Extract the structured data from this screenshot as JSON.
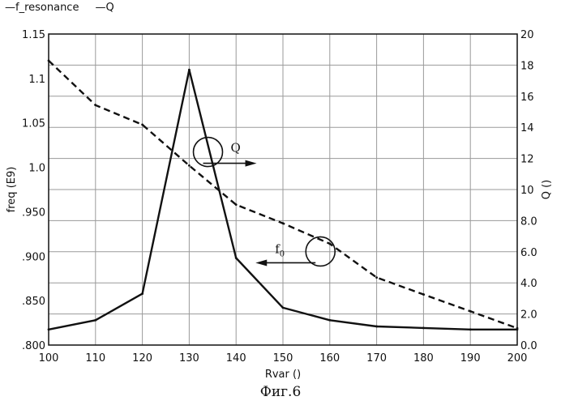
{
  "legend": [
    {
      "label": "f_resonance"
    },
    {
      "label": "Q"
    }
  ],
  "caption": "Фиг.6",
  "chart_data": {
    "type": "line",
    "xlabel": "Rvar ()",
    "ylabel_left": "freq (E9) ",
    "ylabel_right": "Q () ",
    "x": [
      100,
      110,
      120,
      130,
      140,
      150,
      160,
      170,
      180,
      190,
      200
    ],
    "xlim": [
      100,
      200
    ],
    "ylim_left": [
      0.8,
      1.15
    ],
    "ylim_right": [
      0,
      20
    ],
    "x_ticks": [
      "100",
      "110",
      "120",
      "130",
      "140",
      "150",
      "160",
      "170",
      "180",
      "190",
      "200"
    ],
    "y_left_ticks": [
      ".800",
      ".850",
      ".900",
      ".950",
      "1.0",
      "1.05",
      "1.1",
      "1.15"
    ],
    "y_right_ticks": [
      "0.0",
      "2.0",
      "4.0",
      "6.0",
      "8.0",
      "10",
      "12",
      "14",
      "16",
      "18",
      "20"
    ],
    "grid": true,
    "series": [
      {
        "name": "f_resonance",
        "axis": "left",
        "style": "dashed",
        "values": [
          1.12,
          1.07,
          1.048,
          1.002,
          0.958,
          0.937,
          0.914,
          0.876,
          0.857,
          0.838,
          0.819
        ]
      },
      {
        "name": "Q",
        "axis": "right",
        "style": "solid",
        "values": [
          1.0,
          1.6,
          3.3,
          17.7,
          5.6,
          2.4,
          1.6,
          1.2,
          1.1,
          1.0,
          1.0
        ]
      }
    ],
    "annotations": [
      {
        "text": "Q",
        "x": 134,
        "y_left": 1.01,
        "arrow": "right"
      },
      {
        "text": "f",
        "subscript": "0",
        "x": 158,
        "y_left": 0.898,
        "arrow": "left"
      }
    ]
  }
}
